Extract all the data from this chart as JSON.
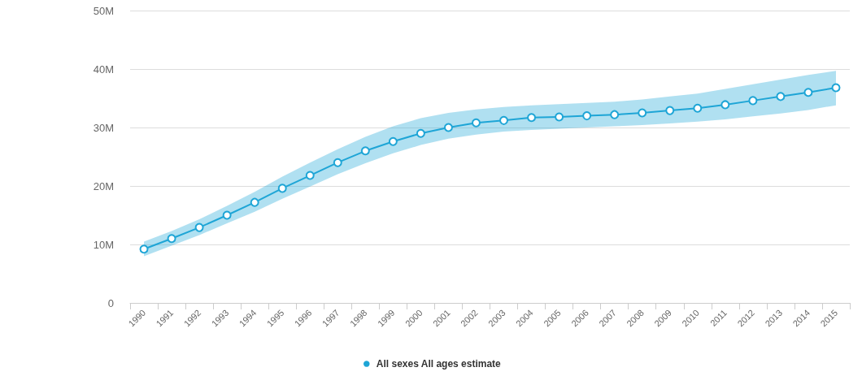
{
  "chart_data": {
    "type": "line",
    "categories": [
      "1990",
      "1991",
      "1992",
      "1993",
      "1994",
      "1995",
      "1996",
      "1997",
      "1998",
      "1999",
      "2000",
      "2001",
      "2002",
      "2003",
      "2004",
      "2005",
      "2006",
      "2007",
      "2008",
      "2009",
      "2010",
      "2011",
      "2012",
      "2013",
      "2014",
      "2015"
    ],
    "series": [
      {
        "name": "All sexes All ages estimate",
        "color": "#1ea5d6",
        "values": [
          9.2,
          11.0,
          12.9,
          15.0,
          17.2,
          19.6,
          21.8,
          24.0,
          26.0,
          27.6,
          29.0,
          30.0,
          30.8,
          31.2,
          31.7,
          31.8,
          32.0,
          32.2,
          32.5,
          32.9,
          33.3,
          33.9,
          34.6,
          35.3,
          36.0,
          36.8
        ],
        "lower": [
          8.0,
          9.8,
          11.6,
          13.6,
          15.6,
          17.8,
          19.9,
          22.0,
          23.9,
          25.6,
          27.0,
          28.1,
          28.8,
          29.3,
          29.6,
          29.8,
          30.0,
          30.2,
          30.4,
          30.7,
          31.0,
          31.4,
          31.9,
          32.4,
          33.0,
          33.8
        ],
        "upper": [
          10.5,
          12.3,
          14.3,
          16.6,
          19.0,
          21.6,
          24.0,
          26.3,
          28.4,
          30.2,
          31.6,
          32.5,
          33.1,
          33.5,
          33.8,
          34.0,
          34.2,
          34.4,
          34.8,
          35.3,
          35.8,
          36.6,
          37.4,
          38.2,
          39.0,
          39.7
        ]
      }
    ],
    "ylim": [
      0,
      50
    ],
    "yticks": [
      0,
      {
        "value": 10,
        "label": "10M"
      },
      {
        "value": 20,
        "label": "20M"
      },
      {
        "value": 30,
        "label": "30M"
      },
      {
        "value": 40,
        "label": "40M"
      },
      {
        "value": 50,
        "label": "50M"
      }
    ],
    "grid": "y",
    "legend": "bottom",
    "marker": "circle",
    "line_style": "solid"
  }
}
